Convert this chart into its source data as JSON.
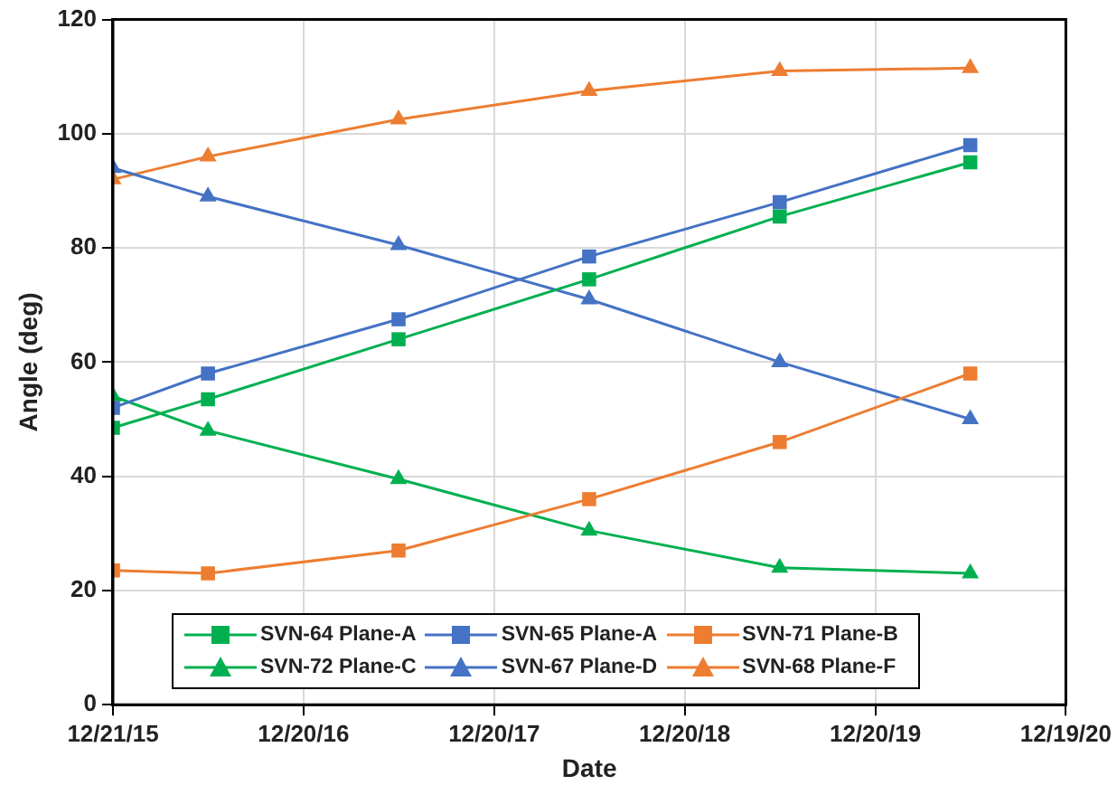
{
  "chart_data": {
    "type": "line",
    "xlabel": "Date",
    "ylabel": "Angle (deg)",
    "x": [
      "2015-12-21",
      "2016-06-20",
      "2017-06-20",
      "2018-06-20",
      "2019-06-20",
      "2020-06-19"
    ],
    "xlim": [
      "2015-12-21",
      "2020-12-19"
    ],
    "xticks": [
      {
        "value": "2015-12-21",
        "label": "12/21/15"
      },
      {
        "value": "2016-12-20",
        "label": "12/20/16"
      },
      {
        "value": "2017-12-20",
        "label": "12/20/17"
      },
      {
        "value": "2018-12-20",
        "label": "12/20/18"
      },
      {
        "value": "2019-12-20",
        "label": "12/20/19"
      },
      {
        "value": "2020-12-19",
        "label": "12/19/20"
      }
    ],
    "ylim": [
      0,
      120
    ],
    "yticks": [
      0,
      20,
      40,
      60,
      80,
      100,
      120
    ],
    "grid": true,
    "legend": "bottom left",
    "line_style": "solid",
    "series": [
      {
        "name": "SVN-64 Plane-A",
        "color": "#00b050",
        "marker": "square",
        "values": [
          48.5,
          53.5,
          64,
          74.5,
          85.5,
          95
        ]
      },
      {
        "name": "SVN-65 Plane-A",
        "color": "#4472c4",
        "marker": "square",
        "values": [
          52,
          58,
          67.5,
          78.5,
          88,
          98
        ]
      },
      {
        "name": "SVN-71 Plane-B",
        "color": "#ed7d31",
        "marker": "square",
        "values": [
          23.5,
          23,
          27,
          36,
          46,
          58
        ]
      },
      {
        "name": "SVN-72 Plane-C",
        "color": "#00b050",
        "marker": "triangle",
        "values": [
          54,
          48,
          39.5,
          30.5,
          24,
          23
        ]
      },
      {
        "name": "SVN-67 Plane-D",
        "color": "#4472c4",
        "marker": "triangle",
        "values": [
          94,
          89,
          80.5,
          71,
          60,
          50
        ]
      },
      {
        "name": "SVN-68 Plane-F",
        "color": "#ed7d31",
        "marker": "triangle",
        "values": [
          92,
          96,
          102.5,
          107.5,
          111,
          111.5
        ]
      }
    ]
  }
}
